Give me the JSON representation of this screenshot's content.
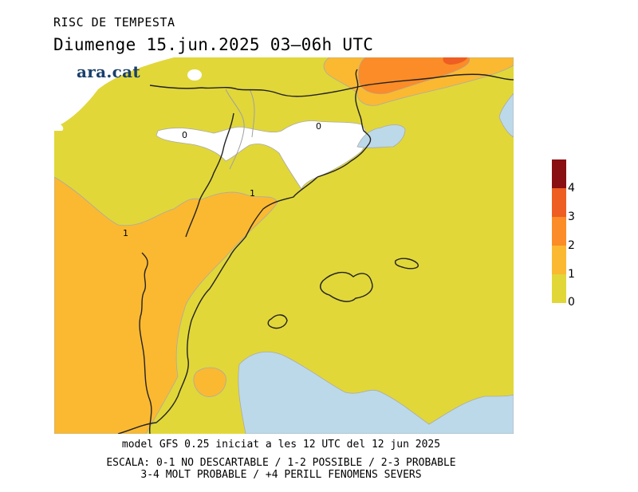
{
  "title": "RISC DE TEMPESTA",
  "subtitle": "Diumenge  15.jun.2025 03–06h UTC",
  "brand": "ara.cat",
  "legend": {
    "ticks": [
      "0",
      "1",
      "2",
      "3",
      "4"
    ],
    "colors": [
      "#e1d739",
      "#fbb931",
      "#fb8c27",
      "#ee5d22",
      "#8a0f12"
    ]
  },
  "contour_labels": [
    "0",
    "0",
    "1",
    "1"
  ],
  "colors": {
    "sea": "#bcd9ea",
    "none": "#ffffff",
    "level1": "#e1d739",
    "level2": "#fbb931",
    "level3": "#fb8c27",
    "level4": "#ee5d22"
  },
  "footer": {
    "line1": "model GFS 0.25 iniciat a les 12 UTC del 12 jun 2025",
    "line2": "ESCALA: 0-1 NO DESCARTABLE / 1-2 POSSIBLE / 2-3 PROBABLE",
    "line3": "3-4 MOLT PROBABLE / +4 PERILL FENOMENS SEVERS"
  }
}
